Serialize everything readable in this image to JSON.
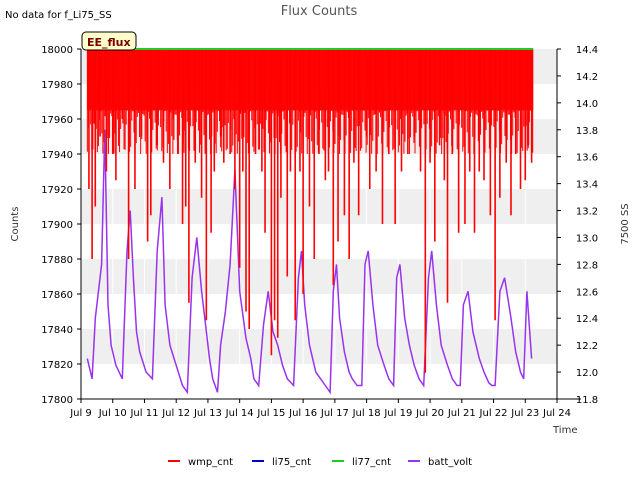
{
  "chart_data": {
    "type": "line",
    "title": "Flux Counts",
    "top_left_note": "No data for f_Li75_SS",
    "badge": "EE_flux",
    "xlabel": "Time",
    "ylabel": "Counts",
    "y2label": "7500 SS",
    "x_range": [
      9.0,
      24.0
    ],
    "x_ticks": [
      9,
      10,
      11,
      12,
      13,
      14,
      15,
      16,
      17,
      18,
      19,
      20,
      21,
      22,
      23,
      24
    ],
    "x_tick_labels": [
      "Jul 9",
      "Jul 10",
      "Jul 11",
      "Jul 12",
      "Jul 13",
      "Jul 14",
      "Jul 15",
      "Jul 16",
      "Jul 17",
      "Jul 18",
      "Jul 19",
      "Jul 20",
      "Jul 21",
      "Jul 22",
      "Jul 23",
      "Jul 24"
    ],
    "ylim": [
      17800,
      18000
    ],
    "y_ticks": [
      17800,
      17820,
      17840,
      17860,
      17880,
      17900,
      17920,
      17940,
      17960,
      17980,
      18000
    ],
    "y2lim": [
      11.8,
      14.4
    ],
    "y2_ticks": [
      11.8,
      12.0,
      12.2,
      12.4,
      12.6,
      12.8,
      13.0,
      13.2,
      13.4,
      13.6,
      13.8,
      14.0,
      14.2,
      14.4
    ],
    "y2_tick_labels": [
      "11.8",
      "12.0",
      "12.2",
      "12.4",
      "12.6",
      "12.8",
      "13.0",
      "13.2",
      "13.4",
      "13.6",
      "13.8",
      "14.0",
      "14.2",
      "14.4"
    ],
    "grid": true,
    "legend_position": "bottom",
    "series": [
      {
        "name": "wmp_cnt",
        "color": "#ff0000",
        "axis": "left",
        "kind": "spikes",
        "x_start": 9.2,
        "x_end": 23.25,
        "baseline": 18000,
        "dips": [
          [
            9.25,
            17920
          ],
          [
            9.35,
            17880
          ],
          [
            9.45,
            17910
          ],
          [
            9.6,
            17950
          ],
          [
            9.8,
            17930
          ],
          [
            10.0,
            17940
          ],
          [
            10.1,
            17925
          ],
          [
            10.3,
            17960
          ],
          [
            10.5,
            17880
          ],
          [
            10.7,
            17920
          ],
          [
            10.9,
            17950
          ],
          [
            11.1,
            17890
          ],
          [
            11.2,
            17905
          ],
          [
            11.4,
            17945
          ],
          [
            11.6,
            17935
          ],
          [
            11.8,
            17920
          ],
          [
            11.9,
            17960
          ],
          [
            12.05,
            17940
          ],
          [
            12.2,
            17900
          ],
          [
            12.3,
            17910
          ],
          [
            12.4,
            17855
          ],
          [
            12.6,
            17935
          ],
          [
            12.8,
            17915
          ],
          [
            12.95,
            17845
          ],
          [
            13.1,
            17895
          ],
          [
            13.2,
            17930
          ],
          [
            13.4,
            17950
          ],
          [
            13.5,
            17935
          ],
          [
            13.7,
            17940
          ],
          [
            13.85,
            17920
          ],
          [
            14.0,
            17875
          ],
          [
            14.1,
            17930
          ],
          [
            14.2,
            17850
          ],
          [
            14.3,
            17840
          ],
          [
            14.5,
            17940
          ],
          [
            14.7,
            17930
          ],
          [
            14.8,
            17895
          ],
          [
            15.0,
            17825
          ],
          [
            15.1,
            17845
          ],
          [
            15.2,
            17835
          ],
          [
            15.3,
            17915
          ],
          [
            15.5,
            17870
          ],
          [
            15.6,
            17930
          ],
          [
            15.75,
            17845
          ],
          [
            15.9,
            17930
          ],
          [
            16.0,
            17860
          ],
          [
            16.2,
            17910
          ],
          [
            16.35,
            17880
          ],
          [
            16.5,
            17940
          ],
          [
            16.7,
            17925
          ],
          [
            16.8,
            17930
          ],
          [
            16.95,
            17865
          ],
          [
            17.1,
            17890
          ],
          [
            17.3,
            17905
          ],
          [
            17.45,
            17880
          ],
          [
            17.6,
            17935
          ],
          [
            17.75,
            17905
          ],
          [
            18.0,
            17950
          ],
          [
            18.1,
            17920
          ],
          [
            18.3,
            17930
          ],
          [
            18.5,
            17900
          ],
          [
            18.7,
            17940
          ],
          [
            18.9,
            17900
          ],
          [
            19.1,
            17930
          ],
          [
            19.3,
            17940
          ],
          [
            19.5,
            17950
          ],
          [
            19.7,
            17930
          ],
          [
            19.85,
            17815
          ],
          [
            20.0,
            17935
          ],
          [
            20.15,
            17890
          ],
          [
            20.3,
            17945
          ],
          [
            20.45,
            17925
          ],
          [
            20.55,
            17855
          ],
          [
            20.7,
            17940
          ],
          [
            20.9,
            17895
          ],
          [
            21.1,
            17900
          ],
          [
            21.25,
            17930
          ],
          [
            21.4,
            17895
          ],
          [
            21.55,
            17930
          ],
          [
            21.7,
            17925
          ],
          [
            21.9,
            17905
          ],
          [
            22.05,
            17845
          ],
          [
            22.2,
            17915
          ],
          [
            22.4,
            17935
          ],
          [
            22.55,
            17905
          ],
          [
            22.7,
            17940
          ],
          [
            22.85,
            17920
          ],
          [
            23.0,
            17925
          ],
          [
            23.1,
            17945
          ],
          [
            23.2,
            17935
          ]
        ]
      },
      {
        "name": "li75_cnt",
        "color": "#0000cc",
        "axis": "left",
        "kind": "none",
        "values": []
      },
      {
        "name": "li77_cnt",
        "color": "#22cc22",
        "axis": "left",
        "kind": "flat",
        "x": [
          9.2,
          23.25
        ],
        "y": [
          18000,
          18000
        ]
      },
      {
        "name": "batt_volt",
        "color": "#9933ee",
        "axis": "right",
        "kind": "line",
        "x": [
          9.2,
          9.35,
          9.45,
          9.65,
          9.75,
          9.85,
          9.95,
          10.1,
          10.3,
          10.45,
          10.55,
          10.65,
          10.75,
          10.85,
          11.05,
          11.25,
          11.4,
          11.55,
          11.65,
          11.8,
          12.0,
          12.2,
          12.35,
          12.5,
          12.65,
          12.8,
          12.9,
          13.05,
          13.15,
          13.3,
          13.4,
          13.55,
          13.7,
          13.85,
          14.0,
          14.2,
          14.35,
          14.45,
          14.6,
          14.75,
          14.9,
          15.05,
          15.2,
          15.35,
          15.5,
          15.7,
          15.85,
          15.95,
          16.05,
          16.2,
          16.4,
          16.55,
          16.7,
          16.85,
          16.95,
          17.05,
          17.15,
          17.3,
          17.45,
          17.55,
          17.7,
          17.85,
          17.95,
          18.05,
          18.2,
          18.35,
          18.55,
          18.7,
          18.85,
          18.95,
          19.05,
          19.2,
          19.35,
          19.5,
          19.65,
          19.8,
          19.95,
          20.05,
          20.2,
          20.35,
          20.55,
          20.7,
          20.85,
          20.95,
          21.05,
          21.2,
          21.35,
          21.55,
          21.7,
          21.85,
          21.95,
          22.05,
          22.2,
          22.35,
          22.55,
          22.7,
          22.85,
          22.95,
          23.05,
          23.2
        ],
        "y": [
          12.1,
          11.95,
          12.4,
          12.8,
          13.8,
          12.5,
          12.2,
          12.05,
          11.95,
          12.9,
          13.2,
          12.7,
          12.3,
          12.15,
          12.0,
          11.95,
          12.9,
          13.3,
          12.5,
          12.2,
          12.05,
          11.9,
          11.85,
          12.7,
          13.0,
          12.6,
          12.4,
          12.1,
          11.95,
          11.85,
          12.2,
          12.45,
          12.8,
          13.5,
          12.6,
          12.25,
          12.1,
          11.95,
          11.9,
          12.35,
          12.6,
          12.3,
          12.2,
          12.05,
          11.95,
          11.9,
          12.7,
          12.9,
          12.5,
          12.2,
          12.0,
          11.95,
          11.9,
          11.85,
          12.6,
          12.8,
          12.4,
          12.15,
          12.0,
          11.95,
          11.9,
          11.9,
          12.8,
          12.9,
          12.5,
          12.2,
          12.05,
          11.95,
          11.9,
          12.7,
          12.8,
          12.4,
          12.2,
          12.05,
          11.95,
          11.9,
          12.7,
          12.9,
          12.5,
          12.2,
          12.05,
          11.95,
          11.9,
          11.9,
          12.5,
          12.6,
          12.3,
          12.1,
          12.0,
          11.92,
          11.9,
          11.9,
          12.6,
          12.7,
          12.4,
          12.15,
          12.0,
          11.95,
          12.6,
          12.1
        ]
      }
    ]
  }
}
